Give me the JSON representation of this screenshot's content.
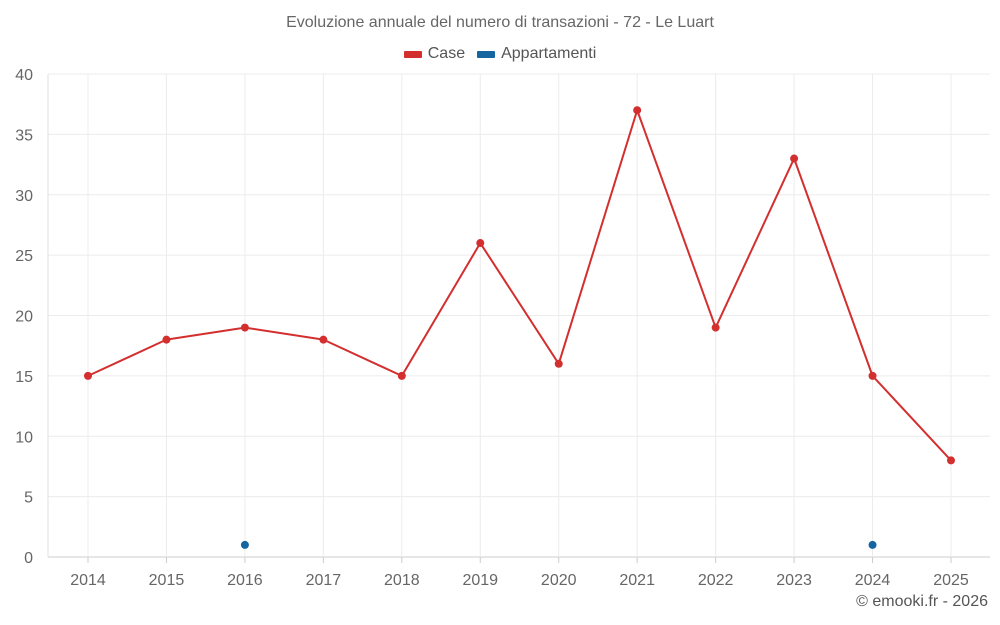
{
  "chart_data": {
    "type": "line",
    "title": "Evoluzione annuale del numero di transazioni - 72 - Le Luart",
    "categories": [
      "2014",
      "2015",
      "2016",
      "2017",
      "2018",
      "2019",
      "2020",
      "2021",
      "2022",
      "2023",
      "2024",
      "2025"
    ],
    "series": [
      {
        "name": "Case",
        "color": "#d32f2f",
        "values": [
          15,
          18,
          19,
          18,
          15,
          26,
          16,
          37,
          19,
          33,
          15,
          8
        ]
      },
      {
        "name": "Appartamenti",
        "color": "#1565a0",
        "values": [
          null,
          null,
          1,
          null,
          null,
          null,
          null,
          null,
          null,
          null,
          1,
          null
        ]
      }
    ],
    "yticks": [
      "0",
      "5",
      "10",
      "15",
      "20",
      "25",
      "30",
      "35",
      "40"
    ],
    "ylim": [
      0,
      40
    ],
    "grid": true,
    "legend_position": "top-center"
  },
  "credit": "© emooki.fr - 2026"
}
